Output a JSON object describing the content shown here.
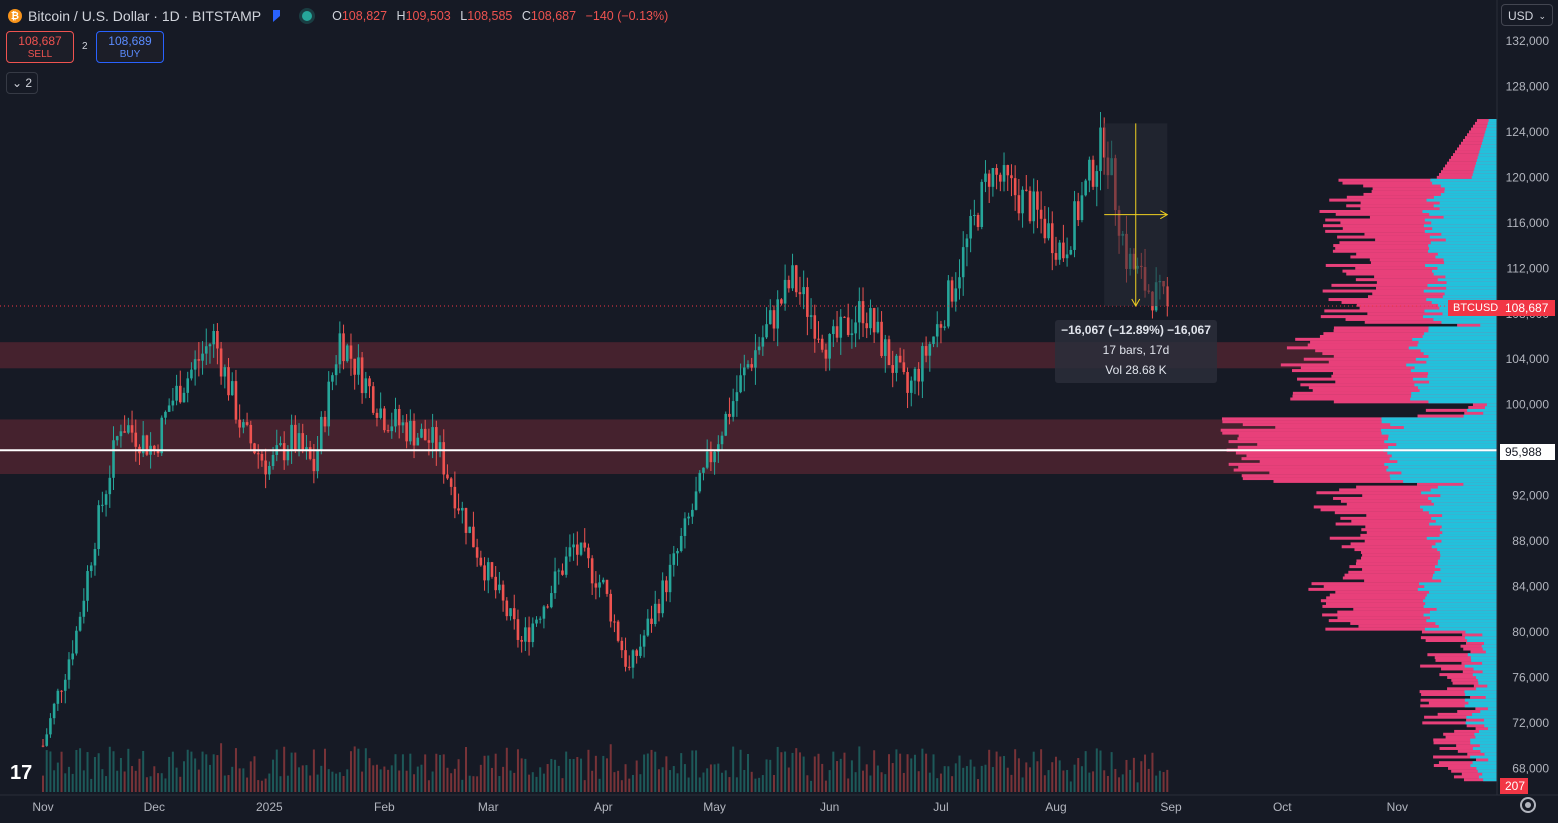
{
  "header": {
    "coin_symbol": "₿",
    "title": "Bitcoin / U.S. Dollar · 1D · BITSTAMP",
    "ohlc": {
      "o_label": "O",
      "o": "108,827",
      "h_label": "H",
      "h": "109,503",
      "l_label": "L",
      "l": "108,585",
      "c_label": "C",
      "c": "108,687",
      "change": "−140 (−0.13%)"
    }
  },
  "trade": {
    "sell_price": "108,687",
    "sell_label": "SELL",
    "spread": "2",
    "buy_price": "108,689",
    "buy_label": "BUY"
  },
  "collapse_label": "⌄ 2",
  "currency": "USD",
  "logo_text": "17",
  "icons": [
    "bitcoin-icon",
    "flag-icon",
    "market-status-icon",
    "settings-icon",
    "tradingview-logo-icon",
    "chevron-down-icon"
  ],
  "colors": {
    "background": "#161a25",
    "up": "#26a69a",
    "down": "#ef5350",
    "zone": "#4a2330",
    "profile_volume": "#e8407a",
    "profile_value": "#22c1dc",
    "price_line": "#f23645",
    "measure": "#f0d020"
  },
  "price_axis": [
    "132,000",
    "128,000",
    "124,000",
    "120,000",
    "116,000",
    "112,000",
    "108,000",
    "104,000",
    "100,000",
    "96,000",
    "92,000",
    "88,000",
    "84,000",
    "80,000",
    "76,000",
    "72,000",
    "68,000"
  ],
  "time_axis": [
    "Nov",
    "Dec",
    "2025",
    "Feb",
    "Mar",
    "Apr",
    "May",
    "Jun",
    "Jul",
    "Aug",
    "Sep",
    "Oct",
    "Nov"
  ],
  "tags": {
    "symbol": "BTCUSD",
    "last_price": "108,687",
    "line_price": "95,988",
    "volume": "207"
  },
  "measure_tooltip": {
    "line1": "−16,067 (−12.89%) −16,067",
    "line2": "17 bars, 17d",
    "line3": "Vol 28.68 K"
  },
  "chart_data": {
    "type": "candlestick",
    "symbol": "BTCUSD",
    "interval": "1D",
    "exchange": "BITSTAMP",
    "y_range": [
      66500,
      134000
    ],
    "grid": false,
    "last_price": 108687,
    "horizontal_line": 95988,
    "zones": [
      [
        103200,
        105500
      ],
      [
        93900,
        98700
      ]
    ],
    "closes_monthly": [
      {
        "date": "2024-11-01",
        "close": 70000
      },
      {
        "date": "2024-11-10",
        "close": 80000
      },
      {
        "date": "2024-11-15",
        "close": 88500
      },
      {
        "date": "2024-11-22",
        "close": 98500
      },
      {
        "date": "2024-12-01",
        "close": 96000
      },
      {
        "date": "2024-12-05",
        "close": 100000
      },
      {
        "date": "2024-12-17",
        "close": 106000
      },
      {
        "date": "2024-12-25",
        "close": 97500
      },
      {
        "date": "2025-01-01",
        "close": 94500
      },
      {
        "date": "2025-01-07",
        "close": 97000
      },
      {
        "date": "2025-01-13",
        "close": 94500
      },
      {
        "date": "2025-01-20",
        "close": 106000
      },
      {
        "date": "2025-02-01",
        "close": 99000
      },
      {
        "date": "2025-02-15",
        "close": 96500
      },
      {
        "date": "2025-02-25",
        "close": 88000
      },
      {
        "date": "2025-03-01",
        "close": 85000
      },
      {
        "date": "2025-03-10",
        "close": 79000
      },
      {
        "date": "2025-03-24",
        "close": 87500
      },
      {
        "date": "2025-04-01",
        "close": 84000
      },
      {
        "date": "2025-04-08",
        "close": 76500
      },
      {
        "date": "2025-04-20",
        "close": 86000
      },
      {
        "date": "2025-05-01",
        "close": 96500
      },
      {
        "date": "2025-05-10",
        "close": 103500
      },
      {
        "date": "2025-05-22",
        "close": 111000
      },
      {
        "date": "2025-06-01",
        "close": 105000
      },
      {
        "date": "2025-06-10",
        "close": 108500
      },
      {
        "date": "2025-06-22",
        "close": 101000
      },
      {
        "date": "2025-07-01",
        "close": 107500
      },
      {
        "date": "2025-07-10",
        "close": 116000
      },
      {
        "date": "2025-07-14",
        "close": 120500
      },
      {
        "date": "2025-07-25",
        "close": 117500
      },
      {
        "date": "2025-08-03",
        "close": 113500
      },
      {
        "date": "2025-08-14",
        "close": 123500
      },
      {
        "date": "2025-08-20",
        "close": 113000
      },
      {
        "date": "2025-08-25",
        "close": 110500
      },
      {
        "date": "2025-08-31",
        "close": 108687
      }
    ],
    "measurement": {
      "from": 124754,
      "to": 108687,
      "change": -16067,
      "change_pct": -12.89,
      "bars": 17,
      "days": 17,
      "volume": "28.68K"
    }
  }
}
